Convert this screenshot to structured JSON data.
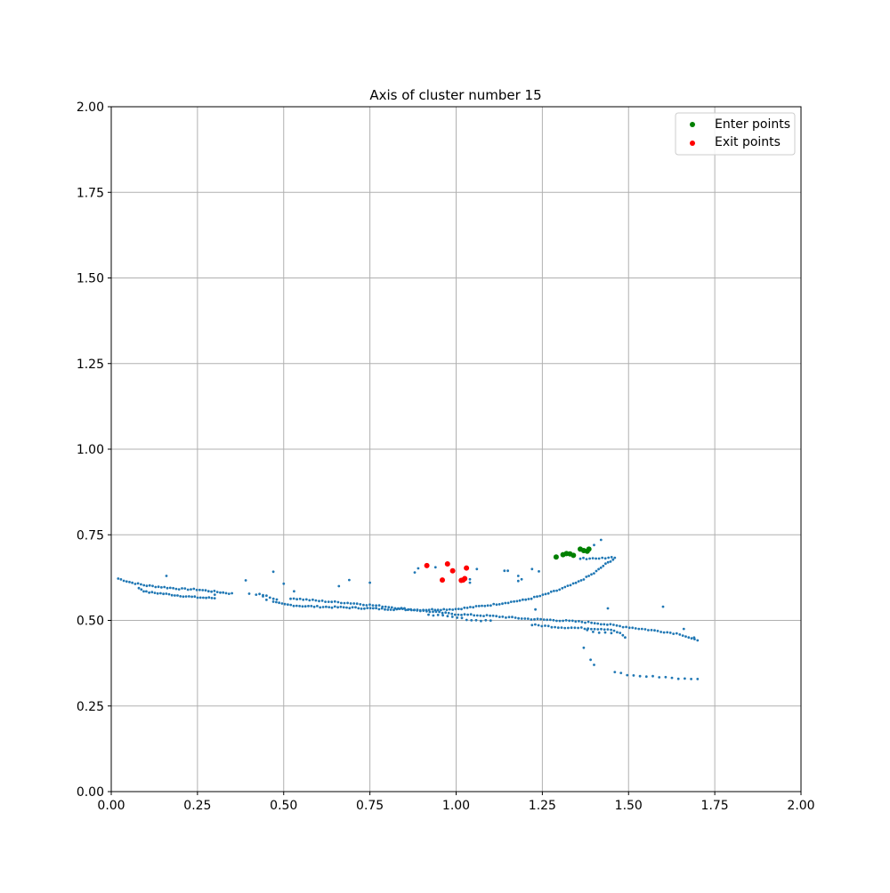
{
  "chart_data": {
    "type": "scatter",
    "title": "Axis of cluster number 15",
    "xlabel": "",
    "ylabel": "",
    "xlim": [
      0,
      2
    ],
    "ylim": [
      0,
      2
    ],
    "xticks": [
      "0.00",
      "0.25",
      "0.50",
      "0.75",
      "1.00",
      "1.25",
      "1.50",
      "1.75",
      "2.00"
    ],
    "yticks": [
      "0.00",
      "0.25",
      "0.50",
      "0.75",
      "1.00",
      "1.25",
      "1.50",
      "1.75",
      "2.00"
    ],
    "grid": true,
    "legend_position": "top-right",
    "axis_points": {
      "color": "#1f77b4",
      "polylines": [
        [
          [
            0.02,
            0.622
          ],
          [
            0.06,
            0.61
          ],
          [
            0.1,
            0.602
          ],
          [
            0.15,
            0.597
          ],
          [
            0.2,
            0.592
          ],
          [
            0.25,
            0.59
          ],
          [
            0.3,
            0.584
          ],
          [
            0.35,
            0.578
          ]
        ],
        [
          [
            0.08,
            0.595
          ],
          [
            0.1,
            0.583
          ],
          [
            0.15,
            0.578
          ],
          [
            0.2,
            0.572
          ],
          [
            0.25,
            0.567
          ],
          [
            0.3,
            0.565
          ]
        ],
        [
          [
            0.43,
            0.578
          ],
          [
            0.46,
            0.568
          ],
          [
            0.48,
            0.56
          ]
        ],
        [
          [
            0.47,
            0.553
          ],
          [
            0.5,
            0.547
          ],
          [
            0.55,
            0.542
          ],
          [
            0.6,
            0.54
          ],
          [
            0.7,
            0.537
          ],
          [
            0.8,
            0.533
          ],
          [
            0.9,
            0.531
          ],
          [
            1.0,
            0.533
          ],
          [
            1.1,
            0.545
          ],
          [
            1.2,
            0.56
          ],
          [
            1.25,
            0.573
          ],
          [
            1.3,
            0.59
          ],
          [
            1.35,
            0.61
          ],
          [
            1.4,
            0.638
          ],
          [
            1.43,
            0.662
          ],
          [
            1.455,
            0.678
          ]
        ],
        [
          [
            1.46,
            0.683
          ],
          [
            1.42,
            0.682
          ],
          [
            1.38,
            0.681
          ],
          [
            1.36,
            0.68
          ]
        ],
        [
          [
            0.52,
            0.565
          ],
          [
            0.6,
            0.557
          ],
          [
            0.7,
            0.55
          ],
          [
            0.8,
            0.54
          ],
          [
            0.9,
            0.528
          ],
          [
            1.0,
            0.518
          ],
          [
            1.1,
            0.513
          ],
          [
            1.2,
            0.505
          ],
          [
            1.3,
            0.5
          ],
          [
            1.4,
            0.493
          ],
          [
            1.5,
            0.48
          ],
          [
            1.6,
            0.467
          ],
          [
            1.65,
            0.46
          ],
          [
            1.7,
            0.44
          ]
        ],
        [
          [
            0.92,
            0.518
          ],
          [
            1.0,
            0.508
          ],
          [
            1.05,
            0.5
          ],
          [
            1.1,
            0.5
          ]
        ],
        [
          [
            1.22,
            0.487
          ],
          [
            1.3,
            0.48
          ],
          [
            1.4,
            0.476
          ],
          [
            1.45,
            0.474
          ],
          [
            1.48,
            0.46
          ],
          [
            1.49,
            0.45
          ]
        ],
        [
          [
            1.38,
            0.47
          ],
          [
            1.4,
            0.465
          ],
          [
            1.45,
            0.463
          ]
        ],
        [
          [
            1.46,
            0.35
          ],
          [
            1.5,
            0.34
          ],
          [
            1.55,
            0.336
          ],
          [
            1.6,
            0.335
          ],
          [
            1.65,
            0.33
          ],
          [
            1.68,
            0.328
          ],
          [
            1.7,
            0.33
          ]
        ]
      ],
      "counts": [
        40,
        28,
        6,
        120,
        12,
        130,
        14,
        30,
        5,
        14
      ],
      "scatter": [
        [
          0.16,
          0.63
        ],
        [
          0.3,
          0.575
        ],
        [
          0.39,
          0.617
        ],
        [
          0.4,
          0.578
        ],
        [
          0.42,
          0.575
        ],
        [
          0.44,
          0.57
        ],
        [
          0.45,
          0.56
        ],
        [
          0.47,
          0.642
        ],
        [
          0.5,
          0.607
        ],
        [
          0.53,
          0.585
        ],
        [
          0.66,
          0.6
        ],
        [
          0.69,
          0.618
        ],
        [
          0.75,
          0.61
        ],
        [
          0.88,
          0.64
        ],
        [
          0.89,
          0.652
        ],
        [
          0.94,
          0.655
        ],
        [
          1.04,
          0.61
        ],
        [
          1.04,
          0.62
        ],
        [
          1.06,
          0.65
        ],
        [
          1.14,
          0.645
        ],
        [
          1.15,
          0.645
        ],
        [
          1.18,
          0.63
        ],
        [
          1.18,
          0.615
        ],
        [
          1.19,
          0.62
        ],
        [
          1.22,
          0.65
        ],
        [
          1.23,
          0.532
        ],
        [
          1.24,
          0.643
        ],
        [
          1.29,
          0.685
        ],
        [
          1.33,
          0.695
        ],
        [
          1.36,
          0.712
        ],
        [
          1.4,
          0.72
        ],
        [
          1.42,
          0.735
        ],
        [
          1.44,
          0.535
        ],
        [
          1.37,
          0.42
        ],
        [
          1.39,
          0.385
        ],
        [
          1.4,
          0.37
        ],
        [
          1.6,
          0.54
        ],
        [
          1.66,
          0.475
        ],
        [
          1.69,
          0.45
        ]
      ]
    },
    "series": [
      {
        "name": "Enter points",
        "color": "#008000",
        "points": [
          [
            1.29,
            0.685
          ],
          [
            1.31,
            0.692
          ],
          [
            1.32,
            0.695
          ],
          [
            1.33,
            0.694
          ],
          [
            1.34,
            0.69
          ],
          [
            1.36,
            0.708
          ],
          [
            1.37,
            0.704
          ],
          [
            1.38,
            0.702
          ],
          [
            1.385,
            0.708
          ]
        ]
      },
      {
        "name": "Exit points",
        "color": "#ff0000",
        "points": [
          [
            0.915,
            0.66
          ],
          [
            0.975,
            0.665
          ],
          [
            0.99,
            0.645
          ],
          [
            1.03,
            0.653
          ],
          [
            0.96,
            0.618
          ],
          [
            1.015,
            0.617
          ],
          [
            1.02,
            0.618
          ],
          [
            1.025,
            0.622
          ]
        ]
      }
    ]
  }
}
